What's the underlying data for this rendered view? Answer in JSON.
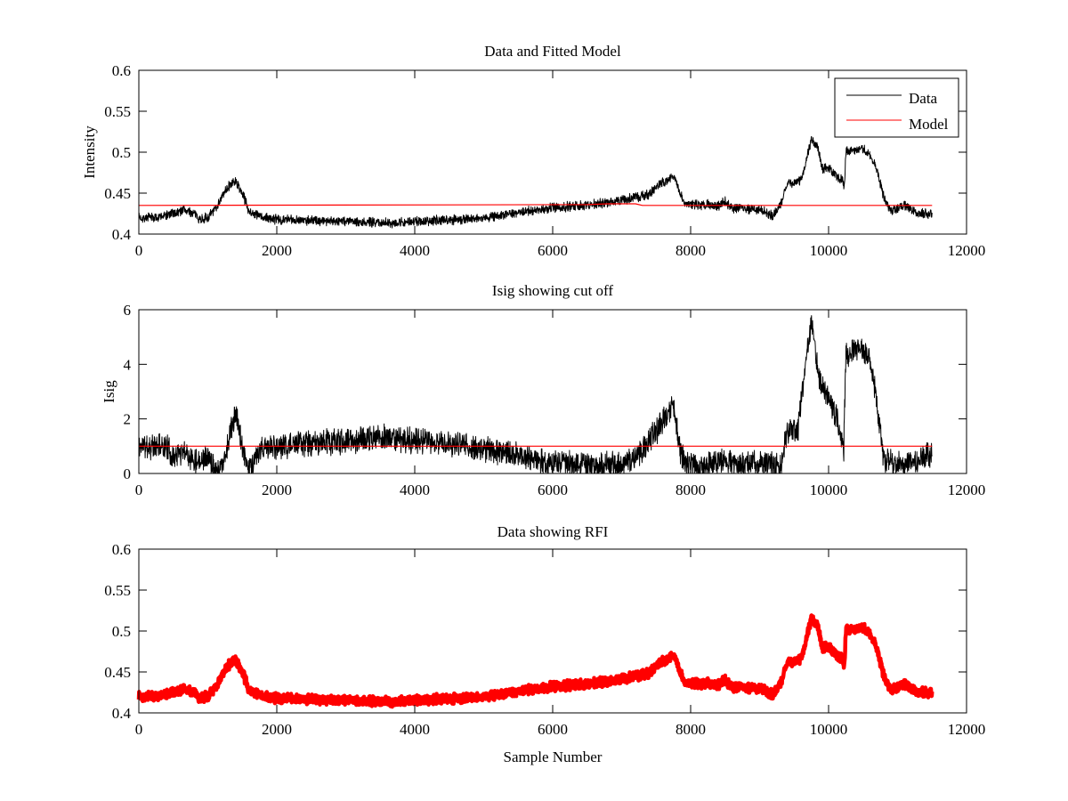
{
  "chart_data": [
    {
      "type": "line",
      "title": "Data and Fitted Model",
      "xlabel": "",
      "ylabel": "Intensity",
      "xlim": [
        0,
        12000
      ],
      "ylim": [
        0.4,
        0.6
      ],
      "xticks": [
        "0",
        "2000",
        "4000",
        "6000",
        "8000",
        "10000",
        "12000"
      ],
      "yticks": [
        "0.4",
        "0.45",
        "0.5",
        "0.55",
        "0.6"
      ],
      "legend": {
        "placement": "top-right",
        "entries": [
          "Data",
          "Model"
        ]
      },
      "noise_amplitude": 0.007,
      "series": [
        {
          "name": "Data",
          "color": "#000000",
          "envelope_x": [
            0,
            250,
            500,
            650,
            800,
            900,
            1000,
            1100,
            1200,
            1300,
            1400,
            1500,
            1600,
            1800,
            2000,
            3000,
            3500,
            4000,
            5000,
            6000,
            6800,
            7200,
            7400,
            7500,
            7750,
            7900,
            8000,
            8400,
            8500,
            8600,
            9000,
            9200,
            9300,
            9400,
            9600,
            9750,
            9850,
            9900,
            10000,
            10200,
            10230,
            10250,
            10500,
            10600,
            10700,
            10800,
            10900,
            11100,
            11300,
            11500
          ],
          "envelope_y": [
            0.42,
            0.42,
            0.425,
            0.43,
            0.425,
            0.418,
            0.42,
            0.43,
            0.445,
            0.458,
            0.465,
            0.45,
            0.428,
            0.42,
            0.418,
            0.416,
            0.414,
            0.415,
            0.42,
            0.432,
            0.438,
            0.445,
            0.448,
            0.458,
            0.47,
            0.44,
            0.436,
            0.435,
            0.44,
            0.432,
            0.43,
            0.422,
            0.435,
            0.462,
            0.465,
            0.515,
            0.505,
            0.48,
            0.48,
            0.465,
            0.46,
            0.5,
            0.505,
            0.495,
            0.48,
            0.445,
            0.428,
            0.435,
            0.425,
            0.425
          ]
        },
        {
          "name": "Model",
          "color": "#ff0000",
          "x": [
            0,
            6500,
            6800,
            7200,
            7300,
            11500
          ],
          "y": [
            0.435,
            0.436,
            0.437,
            0.437,
            0.435,
            0.435
          ]
        }
      ]
    },
    {
      "type": "line",
      "title": "Isig showing cut off",
      "xlabel": "",
      "ylabel": "Isig",
      "xlim": [
        0,
        12000
      ],
      "ylim": [
        0,
        6
      ],
      "xticks": [
        "0",
        "2000",
        "4000",
        "6000",
        "8000",
        "10000",
        "12000"
      ],
      "yticks": [
        "0",
        "2",
        "4",
        "6"
      ],
      "noise_amplitude": 0.55,
      "series": [
        {
          "name": "Isig",
          "color": "#000000",
          "envelope_x": [
            0,
            400,
            500,
            650,
            800,
            1000,
            1150,
            1250,
            1350,
            1420,
            1500,
            1600,
            1800,
            2000,
            3000,
            3500,
            4000,
            4500,
            5000,
            5500,
            6000,
            7000,
            7200,
            7500,
            7750,
            7850,
            7950,
            8500,
            9300,
            9400,
            9550,
            9700,
            9760,
            9850,
            9950,
            10100,
            10220,
            10250,
            10450,
            10600,
            10700,
            10800,
            11000,
            11300,
            11500
          ],
          "envelope_y": [
            1.0,
            1.0,
            0.6,
            0.9,
            0.5,
            0.6,
            0.1,
            0.6,
            1.8,
            2.2,
            0.8,
            0.2,
            0.9,
            1.0,
            1.2,
            1.3,
            1.2,
            1.1,
            0.9,
            0.7,
            0.35,
            0.3,
            0.6,
            1.5,
            2.5,
            0.8,
            0.3,
            0.4,
            0.3,
            1.6,
            1.5,
            4.8,
            5.6,
            3.5,
            3.0,
            2.2,
            0.9,
            4.3,
            4.7,
            4.2,
            2.5,
            0.5,
            0.3,
            0.5,
            0.7
          ]
        },
        {
          "name": "Cut off",
          "color": "#ff0000",
          "x": [
            0,
            11500
          ],
          "y": [
            1,
            1
          ]
        }
      ]
    },
    {
      "type": "scatter",
      "title": "Data showing RFI",
      "xlabel": "Sample Number",
      "ylabel": "",
      "xlim": [
        0,
        12000
      ],
      "ylim": [
        0.4,
        0.6
      ],
      "xticks": [
        "0",
        "2000",
        "4000",
        "6000",
        "8000",
        "10000",
        "12000"
      ],
      "yticks": [
        "0.4",
        "0.45",
        "0.5",
        "0.55",
        "0.6"
      ],
      "series": [
        {
          "name": "RFI data",
          "color": "#ff0000",
          "same_as": "Data"
        }
      ]
    }
  ]
}
